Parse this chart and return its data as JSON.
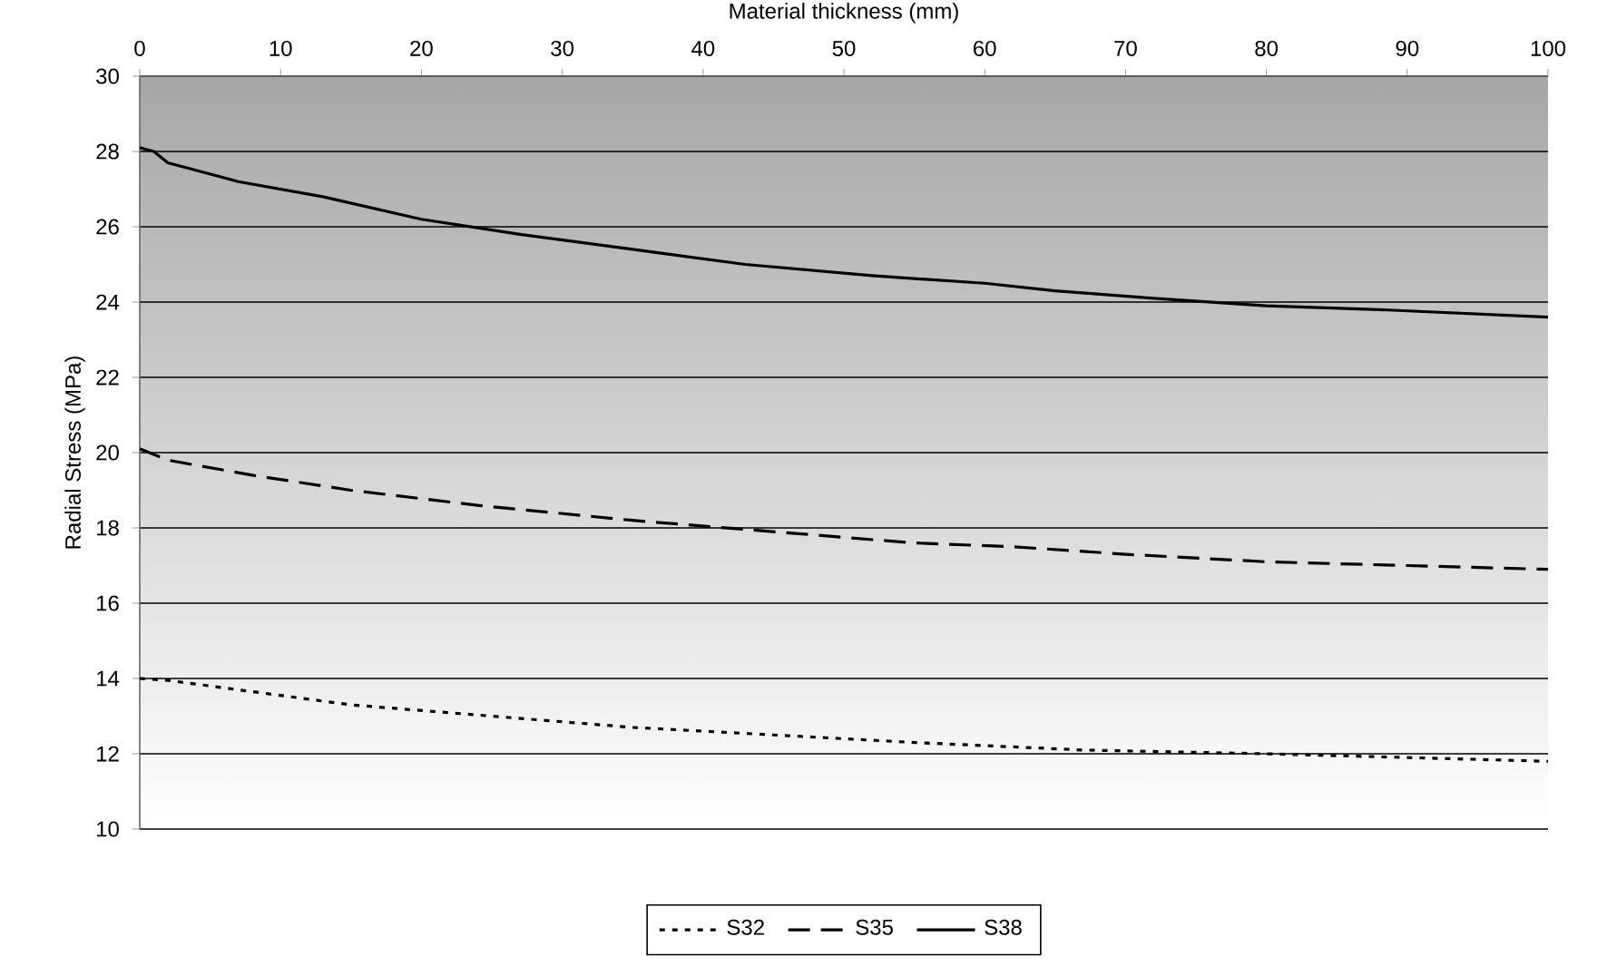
{
  "chart_data": {
    "type": "line",
    "xlabel": "Material thickness (mm)",
    "ylabel": "Radial Stress (MPa)",
    "xlim": [
      0,
      100
    ],
    "xticks": [
      0,
      10,
      20,
      30,
      40,
      50,
      60,
      70,
      80,
      90,
      100
    ],
    "ylim": [
      10,
      30
    ],
    "yticks": [
      10,
      12,
      14,
      16,
      18,
      20,
      22,
      24,
      26,
      28,
      30
    ],
    "grid": "y",
    "legend": "bottom",
    "marker": "none",
    "series": [
      {
        "name": "S32",
        "color": "#000000",
        "line_style": "dotted",
        "x": [
          0,
          2,
          7,
          15,
          25,
          35,
          45,
          55,
          67,
          80,
          90,
          100
        ],
        "values": [
          14.0,
          13.95,
          13.7,
          13.3,
          13.0,
          12.7,
          12.5,
          12.3,
          12.1,
          12.0,
          11.9,
          11.8
        ]
      },
      {
        "name": "S35",
        "color": "#000000",
        "line_style": "dashed",
        "x": [
          0,
          2,
          8,
          15,
          24,
          35,
          45,
          55,
          62,
          70,
          80,
          90,
          100
        ],
        "values": [
          20.1,
          19.8,
          19.4,
          19.0,
          18.6,
          18.2,
          17.9,
          17.6,
          17.5,
          17.3,
          17.1,
          17.0,
          16.9
        ]
      },
      {
        "name": "S38",
        "color": "#000000",
        "line_style": "solid",
        "x": [
          0,
          1,
          2,
          4,
          7,
          13,
          20,
          27,
          35,
          43,
          52,
          60,
          65,
          72,
          80,
          88,
          100
        ],
        "values": [
          28.1,
          28.0,
          27.7,
          27.5,
          27.2,
          26.8,
          26.2,
          25.8,
          25.4,
          25.0,
          24.7,
          24.5,
          24.3,
          24.1,
          23.9,
          23.8,
          23.6
        ]
      }
    ]
  }
}
